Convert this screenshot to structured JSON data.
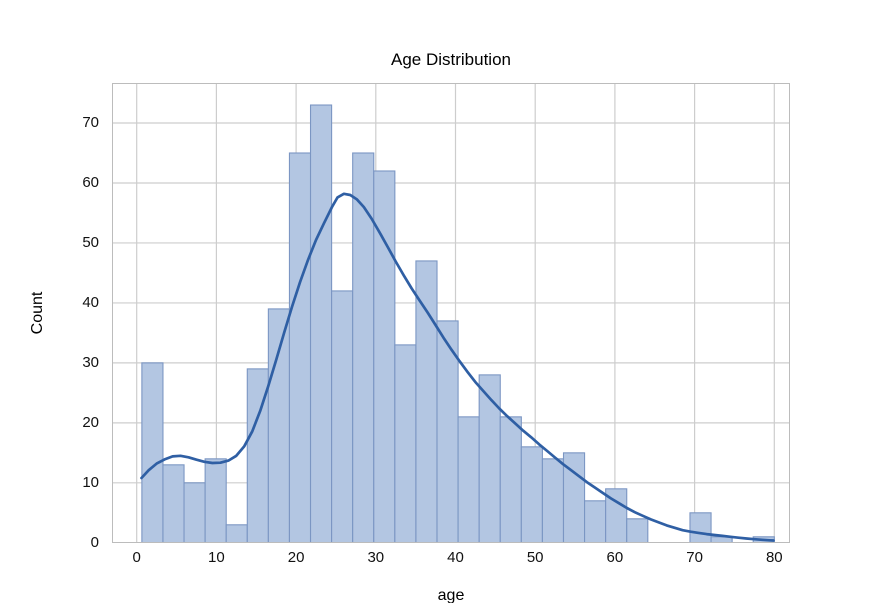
{
  "title": "Age Distribution",
  "x_axis": {
    "label": "age",
    "ticks": [
      0,
      10,
      20,
      30,
      40,
      50,
      60,
      70,
      80
    ]
  },
  "y_axis": {
    "label": "Count",
    "ticks": [
      0,
      10,
      20,
      30,
      40,
      50,
      60,
      70
    ]
  },
  "colors": {
    "bar_fill": "#b3c6e2",
    "bar_edge": "#7b96c3",
    "kde_line": "#2f5fa4",
    "grid": "#cdcdcd",
    "spine": "#bcbcbc",
    "text": "#111111"
  },
  "chart_data": {
    "type": "bar",
    "subtype": "histogram_with_kde",
    "title": "Age Distribution",
    "xlabel": "age",
    "ylabel": "Count",
    "xlim": [
      -3.1,
      82
    ],
    "ylim": [
      0,
      76.6
    ],
    "grid": true,
    "legend": false,
    "bins": {
      "start": 0.65,
      "width": 2.645,
      "counts": [
        30,
        13,
        10,
        14,
        3,
        29,
        39,
        65,
        73,
        42,
        65,
        62,
        33,
        47,
        37,
        21,
        28,
        21,
        16,
        14,
        15,
        7,
        9,
        4,
        0,
        0,
        5,
        1,
        0,
        1
      ]
    },
    "series": [
      {
        "name": "histogram",
        "values": [
          30,
          13,
          10,
          14,
          3,
          29,
          39,
          65,
          73,
          42,
          65,
          62,
          33,
          47,
          37,
          21,
          28,
          21,
          16,
          14,
          15,
          7,
          9,
          4,
          0,
          0,
          5,
          1,
          0,
          1
        ]
      },
      {
        "name": "kde",
        "points": [
          [
            0.6,
            10.8
          ],
          [
            1.5,
            12.1
          ],
          [
            2.5,
            13.2
          ],
          [
            3.5,
            13.9
          ],
          [
            4.5,
            14.4
          ],
          [
            5.5,
            14.5
          ],
          [
            6.5,
            14.25
          ],
          [
            7.5,
            13.85
          ],
          [
            8.5,
            13.5
          ],
          [
            9.5,
            13.3
          ],
          [
            10.5,
            13.35
          ],
          [
            11.5,
            13.7
          ],
          [
            12.5,
            14.5
          ],
          [
            13.5,
            16.1
          ],
          [
            14.5,
            18.6
          ],
          [
            15.5,
            22.0
          ],
          [
            16.5,
            26.1
          ],
          [
            17.5,
            30.5
          ],
          [
            18.5,
            35.0
          ],
          [
            19.5,
            39.4
          ],
          [
            20.5,
            43.5
          ],
          [
            21.5,
            47.2
          ],
          [
            22.5,
            50.5
          ],
          [
            23.5,
            53.3
          ],
          [
            24.5,
            56.0
          ],
          [
            25.2,
            57.6
          ],
          [
            26.0,
            58.2
          ],
          [
            26.8,
            58.0
          ],
          [
            27.6,
            57.3
          ],
          [
            28.5,
            56.0
          ],
          [
            29.5,
            54.0
          ],
          [
            30.5,
            51.7
          ],
          [
            31.5,
            49.3
          ],
          [
            32.5,
            46.9
          ],
          [
            33.5,
            44.6
          ],
          [
            34.5,
            42.4
          ],
          [
            35.5,
            40.4
          ],
          [
            36.5,
            38.4
          ],
          [
            37.5,
            36.3
          ],
          [
            38.5,
            34.2
          ],
          [
            39.5,
            32.2
          ],
          [
            40.5,
            30.3
          ],
          [
            41.5,
            28.5
          ],
          [
            42.5,
            26.8
          ],
          [
            43.5,
            25.3
          ],
          [
            44.5,
            23.8
          ],
          [
            45.5,
            22.4
          ],
          [
            46.5,
            21.1
          ],
          [
            47.5,
            19.9
          ],
          [
            48.5,
            18.7
          ],
          [
            49.5,
            17.6
          ],
          [
            50.5,
            16.4
          ],
          [
            51.5,
            15.3
          ],
          [
            52.5,
            14.2
          ],
          [
            53.5,
            13.1
          ],
          [
            54.5,
            12.1
          ],
          [
            55.5,
            11.1
          ],
          [
            56.5,
            10.1
          ],
          [
            57.5,
            9.2
          ],
          [
            58.5,
            8.3
          ],
          [
            59.5,
            7.4
          ],
          [
            60.5,
            6.6
          ],
          [
            61.5,
            5.8
          ],
          [
            62.5,
            5.1
          ],
          [
            63.5,
            4.5
          ],
          [
            64.5,
            3.9
          ],
          [
            65.5,
            3.4
          ],
          [
            66.5,
            2.9
          ],
          [
            67.5,
            2.5
          ],
          [
            68.5,
            2.1
          ],
          [
            69.5,
            1.85
          ],
          [
            70.5,
            1.65
          ],
          [
            71.5,
            1.45
          ],
          [
            72.5,
            1.3
          ],
          [
            73.5,
            1.15
          ],
          [
            74.5,
            1.0
          ],
          [
            75.5,
            0.85
          ],
          [
            76.5,
            0.72
          ],
          [
            77.5,
            0.6
          ],
          [
            78.5,
            0.5
          ],
          [
            79.4,
            0.42
          ],
          [
            79.9,
            0.38
          ]
        ]
      }
    ]
  }
}
